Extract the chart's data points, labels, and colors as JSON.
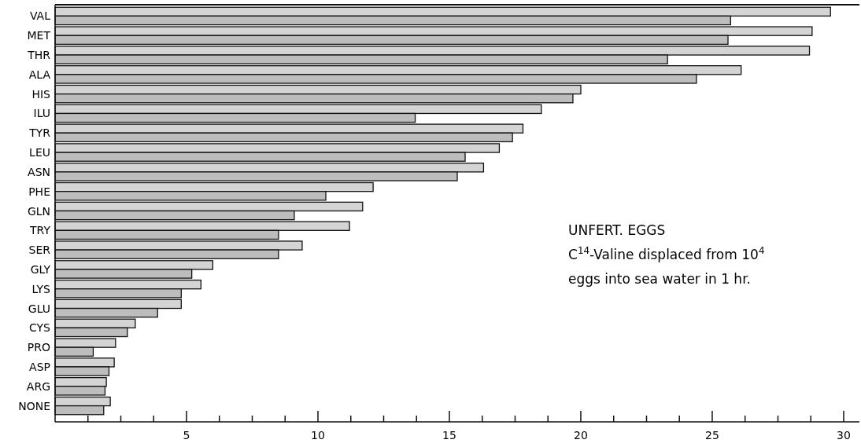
{
  "chart_data": {
    "type": "bar",
    "orientation": "horizontal",
    "categories": [
      "VAL",
      "MET",
      "THR",
      "ALA",
      "HIS",
      "ILU",
      "TYR",
      "LEU",
      "ASN",
      "PHE",
      "GLN",
      "TRY",
      "SER",
      "GLY",
      "LYS",
      "GLU",
      "CYS",
      "PRO",
      "ASP",
      "ARG",
      "NONE"
    ],
    "series": [
      {
        "color": "#d4d4d4",
        "values": [
          29.5,
          28.8,
          28.7,
          26.1,
          20.0,
          18.5,
          17.8,
          16.9,
          16.3,
          12.1,
          11.7,
          11.2,
          9.4,
          6.0,
          5.55,
          4.8,
          3.05,
          2.3,
          2.25,
          1.95,
          2.1
        ]
      },
      {
        "color": "#bdbdbd",
        "values": [
          25.7,
          25.6,
          23.3,
          24.4,
          19.7,
          13.7,
          17.4,
          15.6,
          15.3,
          10.3,
          9.1,
          8.5,
          8.5,
          5.2,
          4.8,
          3.9,
          2.75,
          1.45,
          2.05,
          1.9,
          1.85
        ]
      }
    ],
    "xlim": [
      0,
      30.6
    ],
    "xticks": [
      {
        "value": 1.25,
        "label": null
      },
      {
        "value": 2.5,
        "label": null
      },
      {
        "value": 3.75,
        "label": null
      },
      5,
      {
        "value": 6.25,
        "label": null
      },
      {
        "value": 7.5,
        "label": null
      },
      {
        "value": 8.75,
        "label": null
      },
      10,
      {
        "value": 11.25,
        "label": null
      },
      {
        "value": 12.5,
        "label": null
      },
      {
        "value": 13.75,
        "label": null
      },
      15,
      {
        "value": 16.25,
        "label": null
      },
      {
        "value": 17.5,
        "label": null
      },
      {
        "value": 18.75,
        "label": null
      },
      20,
      {
        "value": 21.25,
        "label": null
      },
      {
        "value": 22.5,
        "label": null
      },
      {
        "value": 23.75,
        "label": null
      },
      25,
      {
        "value": 26.25,
        "label": null
      },
      {
        "value": 27.5,
        "label": null
      },
      {
        "value": 28.75,
        "label": null
      },
      30
    ],
    "annotations": [
      "UNFERT. EGGS",
      "C$^{14}$-Valine displaced from 10$^{4}$",
      "eggs into sea water in 1 hr."
    ],
    "grid": false
  }
}
